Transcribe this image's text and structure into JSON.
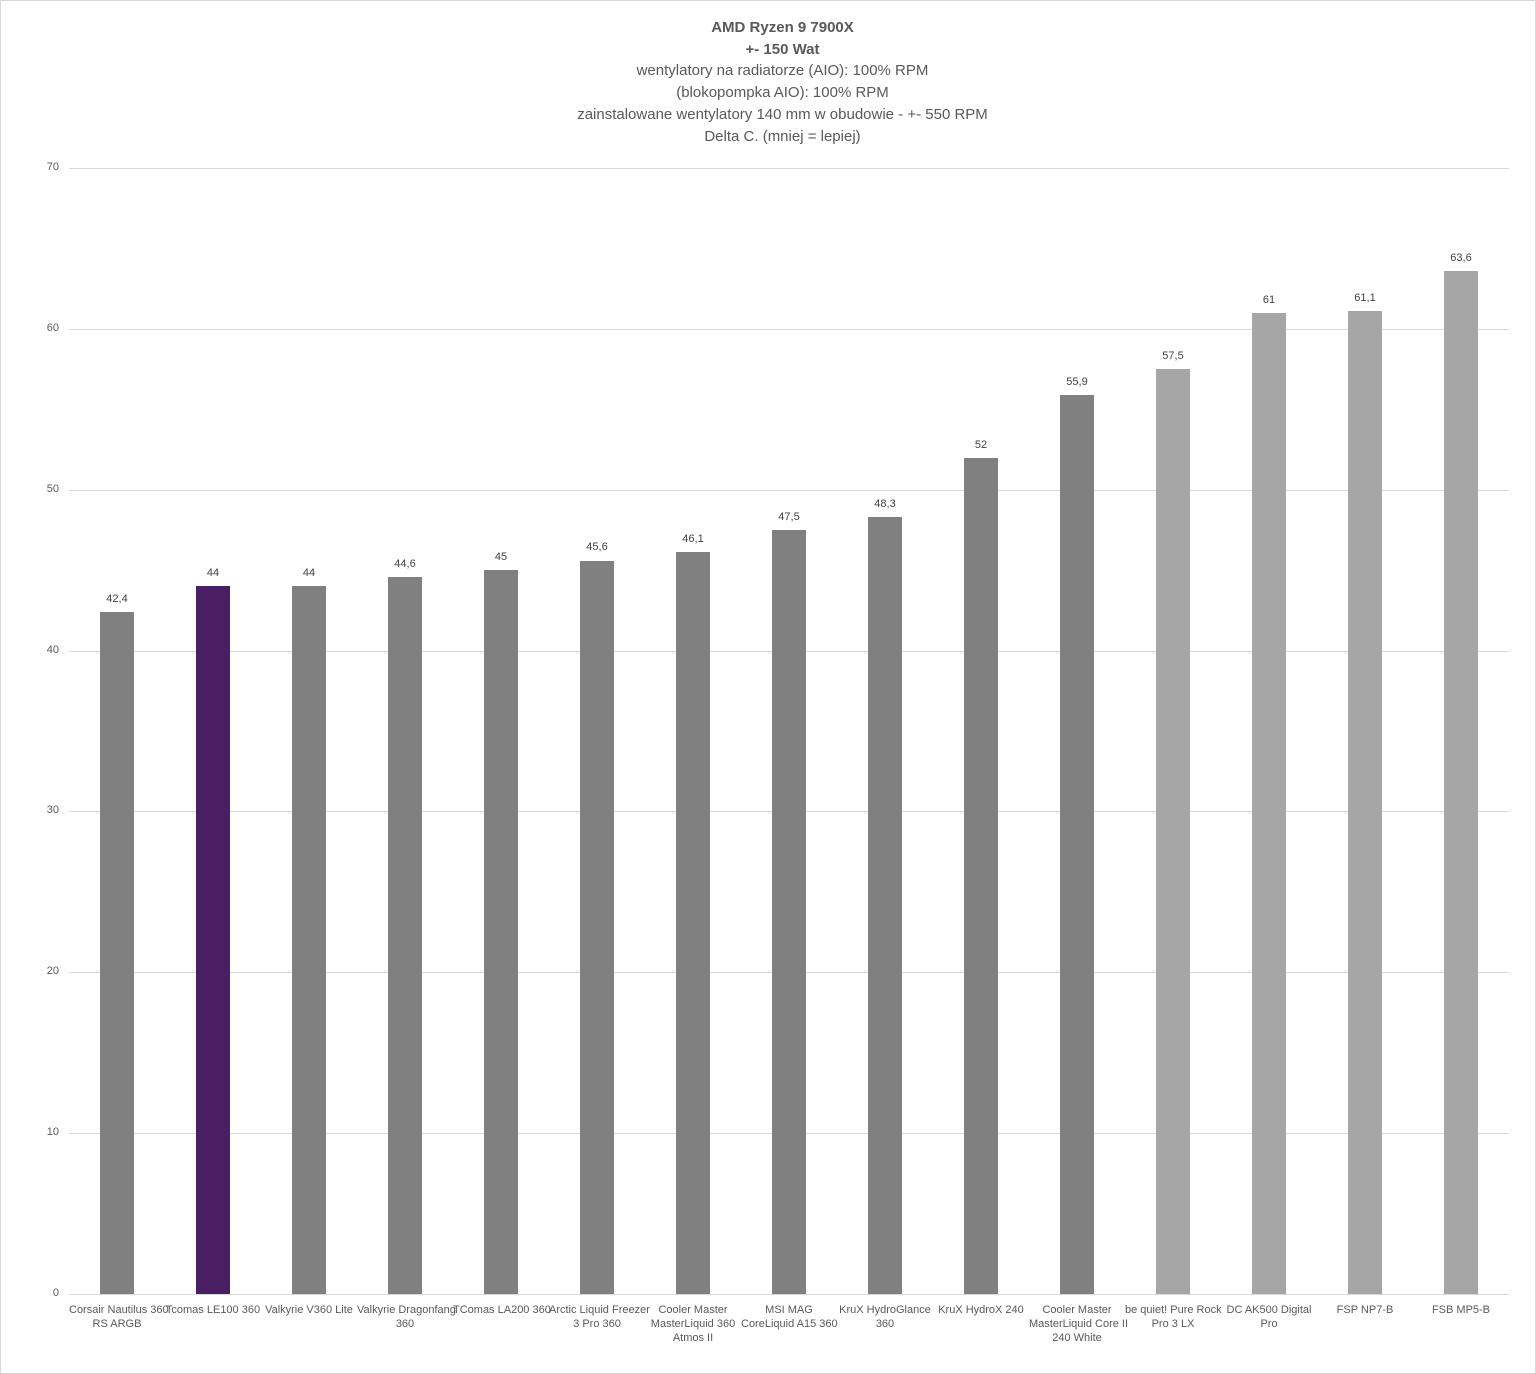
{
  "title": {
    "lines": [
      "AMD Ryzen 9 7900X",
      "+- 150 Wat",
      "wentylatory na radiatorze (AIO): 100% RPM",
      "(blokopompka  AIO): 100% RPM",
      "zainstalowane wentylatory 140 mm w obudowie - +- 550 RPM",
      "Delta C. (mniej = lepiej)"
    ]
  },
  "colors": {
    "highlight": "#4a1e63",
    "aio": "#808080",
    "air": "#a6a6a6",
    "grid": "#d9d9d9",
    "text": "#595959"
  },
  "chart_data": {
    "type": "bar",
    "title": "AMD Ryzen 9 7900X +- 150 Wat — wentylatory na radiatorze (AIO): 100% RPM; (blokopompka AIO): 100% RPM; zainstalowane wentylatory 140 mm w obudowie - +- 550 RPM; Delta C. (mniej = lepiej)",
    "xlabel": "",
    "ylabel": "",
    "ylim": [
      0,
      70
    ],
    "yticks": [
      0,
      10,
      20,
      30,
      40,
      50,
      60,
      70
    ],
    "grid": true,
    "legend": null,
    "categories": [
      "Corsair Nautilus 360 RS ARGB",
      "Tcomas LE100 360",
      "Valkyrie V360 Lite",
      "Valkyrie Dragonfang 360",
      "TComas LA200 360",
      "Arctic Liquid Freezer 3 Pro 360",
      "Cooler Master MasterLiquid 360 Atmos II",
      "MSI MAG CoreLiquid A15 360",
      "KruX HydroGlance 360",
      "KruX HydroX  240",
      "Cooler Master MasterLiquid Core II 240 White",
      "be quiet! Pure Rock Pro 3 LX",
      "DC AK500 Digital Pro",
      "FSP NP7-B",
      "FSB MP5-B"
    ],
    "values": [
      42.4,
      44,
      44,
      44.6,
      45,
      45.6,
      46.1,
      47.5,
      48.3,
      52,
      55.9,
      57.5,
      61,
      61.1,
      63.6
    ],
    "value_labels": [
      "42,4",
      "44",
      "44",
      "44,6",
      "45",
      "45,6",
      "46,1",
      "47,5",
      "48,3",
      "52",
      "55,9",
      "57,5",
      "61",
      "61,1",
      "63,6"
    ],
    "bar_colors": [
      "#808080",
      "#4a1e63",
      "#808080",
      "#808080",
      "#808080",
      "#808080",
      "#808080",
      "#808080",
      "#808080",
      "#808080",
      "#808080",
      "#a6a6a6",
      "#a6a6a6",
      "#a6a6a6",
      "#a6a6a6"
    ]
  },
  "x_labels": [
    [
      "Corsair Nautilus 360",
      "RS ARGB"
    ],
    [
      "Tcomas LE100 360"
    ],
    [
      "Valkyrie V360 Lite"
    ],
    [
      "Valkyrie Dragonfang",
      "360"
    ],
    [
      "TComas LA200 360"
    ],
    [
      "Arctic Liquid Freezer",
      "3 Pro 360"
    ],
    [
      "Cooler Master",
      "MasterLiquid 360",
      "Atmos II"
    ],
    [
      "MSI MAG",
      "CoreLiquid A15 360"
    ],
    [
      "KruX HydroGlance",
      "360"
    ],
    [
      "KruX HydroX  240"
    ],
    [
      "Cooler Master",
      "MasterLiquid Core II",
      "240 White"
    ],
    [
      "be quiet! Pure Rock",
      "Pro 3 LX"
    ],
    [
      "DC AK500 Digital",
      "Pro"
    ],
    [
      "FSP NP7-B"
    ],
    [
      "FSB MP5-B"
    ]
  ]
}
